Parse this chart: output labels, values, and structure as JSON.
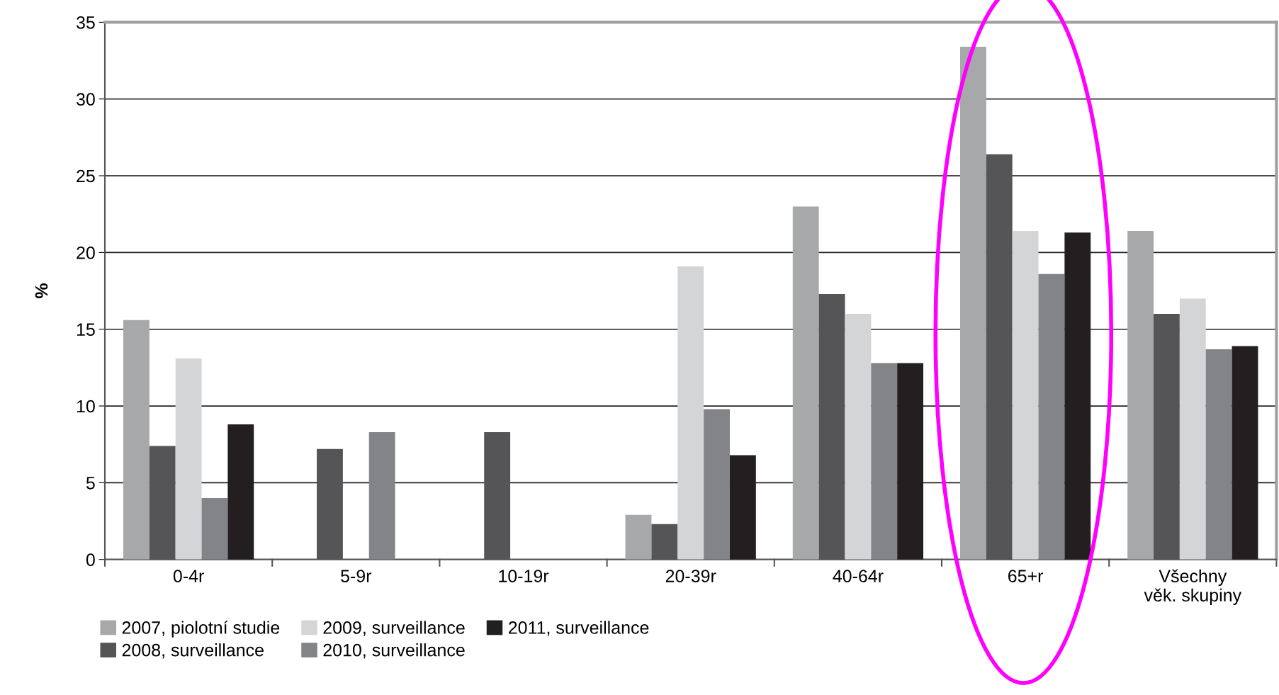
{
  "chart_data": {
    "type": "bar",
    "ylabel": "%",
    "categories": [
      "0-4r",
      "5-9r",
      "10-19r",
      "20-39r",
      "40-64r",
      "65+r",
      "Všechny\nvěk. skupiny"
    ],
    "series": [
      {
        "name": "2007, piolotní studie",
        "color": "#a7a8aa",
        "values": [
          15.6,
          null,
          null,
          2.9,
          23.0,
          33.4,
          21.4
        ]
      },
      {
        "name": "2008, surveillance",
        "color": "#555557",
        "values": [
          7.4,
          7.2,
          8.3,
          2.3,
          17.3,
          26.4,
          16.0
        ]
      },
      {
        "name": "2009, surveillance",
        "color": "#d4d5d6",
        "values": [
          13.1,
          null,
          null,
          19.1,
          16.0,
          21.4,
          17.0
        ]
      },
      {
        "name": "2010, surveillance",
        "color": "#838487",
        "values": [
          4.0,
          8.3,
          null,
          9.8,
          12.8,
          18.6,
          13.7
        ]
      },
      {
        "name": "2011, surveillance",
        "color": "#231f20",
        "values": [
          8.8,
          null,
          null,
          6.8,
          12.8,
          21.3,
          13.9
        ]
      }
    ],
    "ylim": [
      0,
      35
    ],
    "yticks": [
      0,
      5,
      10,
      15,
      20,
      25,
      30,
      35
    ],
    "grid": "y",
    "legend": "bottom"
  }
}
